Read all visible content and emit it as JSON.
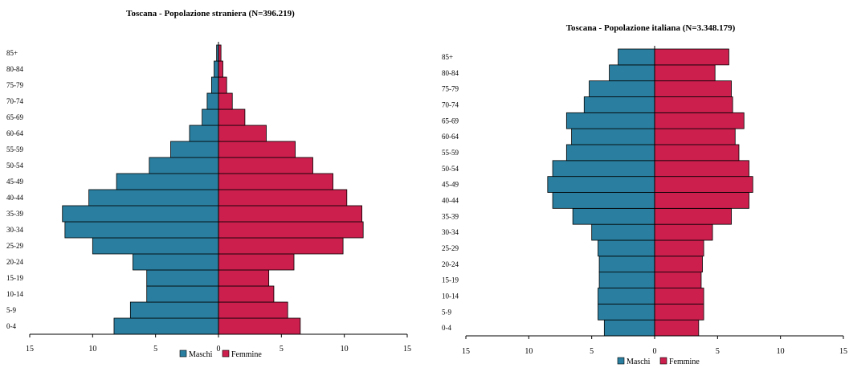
{
  "chart_data": [
    {
      "type": "bar",
      "orientation": "horizontal-pyramid",
      "title": "Toscana - Popolazione straniera (N=396.219)",
      "categories": [
        "0-4",
        "5-9",
        "10-14",
        "15-19",
        "20-24",
        "25-29",
        "30-34",
        "35-39",
        "40-44",
        "45-49",
        "50-54",
        "55-59",
        "60-64",
        "65-69",
        "70-74",
        "75-79",
        "80-84",
        "85+"
      ],
      "series": [
        {
          "name": "Maschi",
          "color": "#2a7fa0",
          "values": [
            8.3,
            7.0,
            5.7,
            5.7,
            6.8,
            10.0,
            12.2,
            12.4,
            10.3,
            8.1,
            5.5,
            3.8,
            2.3,
            1.3,
            0.9,
            0.55,
            0.35,
            0.15
          ]
        },
        {
          "name": "Femmine",
          "color": "#cc1f4e",
          "values": [
            6.5,
            5.5,
            4.4,
            4.0,
            6.0,
            9.9,
            11.5,
            11.4,
            10.2,
            9.1,
            7.5,
            6.1,
            3.8,
            2.1,
            1.1,
            0.65,
            0.35,
            0.2
          ]
        }
      ],
      "xlim": [
        -15,
        15
      ],
      "xticks": [
        "15",
        "10",
        "5",
        "0",
        "5",
        "10",
        "15"
      ],
      "legend": "bottom-center",
      "grid": false
    },
    {
      "type": "bar",
      "orientation": "horizontal-pyramid",
      "title": "Toscana - Popolazione italiana (N=3.348.179)",
      "categories": [
        "0-4",
        "5-9",
        "10-14",
        "15-19",
        "20-24",
        "25-29",
        "30-34",
        "35-39",
        "40-44",
        "45-49",
        "50-54",
        "55-59",
        "60-64",
        "65-69",
        "70-74",
        "75-79",
        "80-84",
        "85+"
      ],
      "series": [
        {
          "name": "Maschi",
          "color": "#2a7fa0",
          "values": [
            4.0,
            4.5,
            4.5,
            4.4,
            4.4,
            4.5,
            5.0,
            6.5,
            8.1,
            8.5,
            8.1,
            7.0,
            6.6,
            7.0,
            5.6,
            5.2,
            3.6,
            2.9
          ]
        },
        {
          "name": "Femmine",
          "color": "#cc1f4e",
          "values": [
            3.5,
            3.9,
            3.9,
            3.7,
            3.8,
            3.9,
            4.6,
            6.1,
            7.5,
            7.8,
            7.5,
            6.7,
            6.4,
            7.1,
            6.2,
            6.1,
            4.8,
            5.9
          ]
        }
      ],
      "xlim": [
        -15,
        15
      ],
      "xticks": [
        "15",
        "10",
        "5",
        "0",
        "5",
        "10",
        "15"
      ],
      "legend": "bottom-center",
      "grid": false
    }
  ]
}
